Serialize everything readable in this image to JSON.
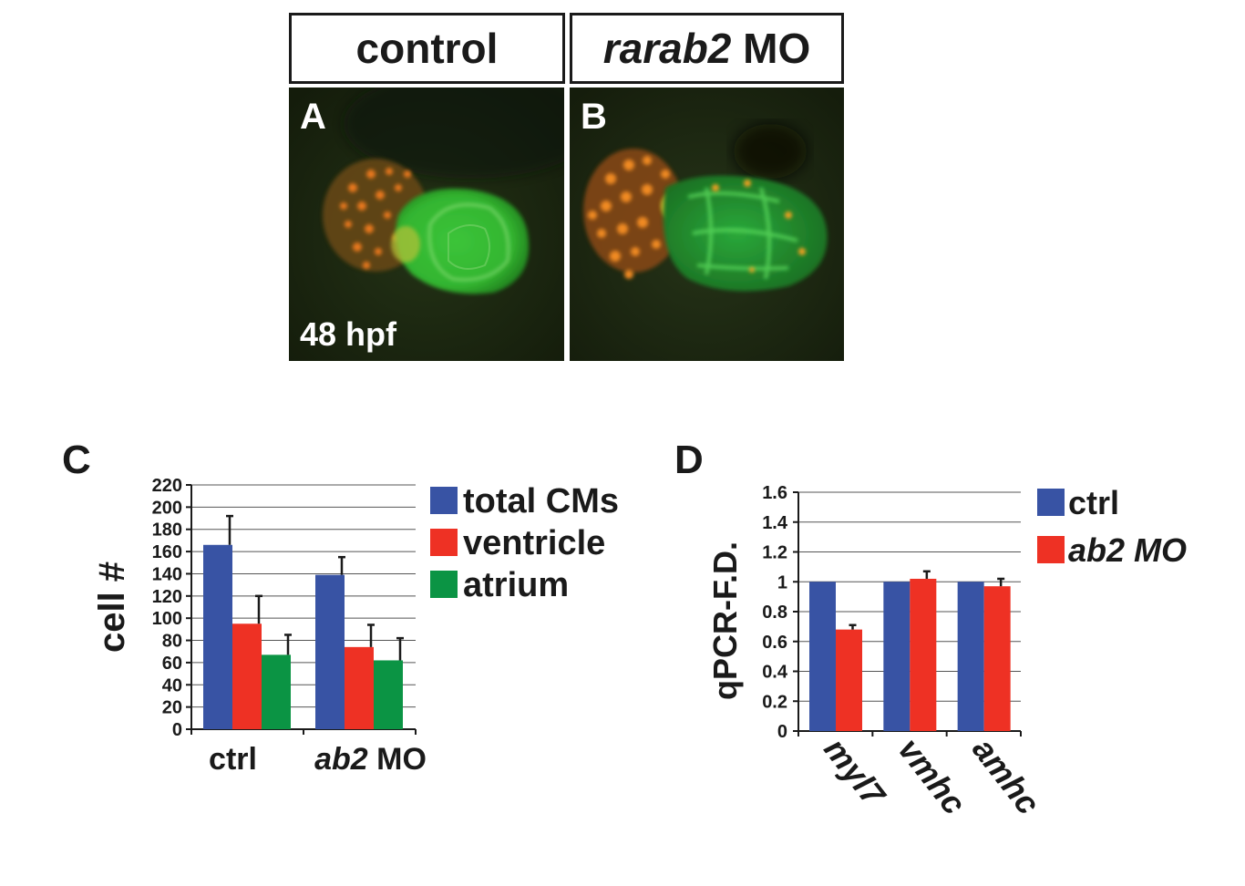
{
  "header": {
    "control_label": "control",
    "mo_label_italic": "rarab2",
    "mo_label_rest": " MO"
  },
  "panels": {
    "a_letter": "A",
    "b_letter": "B",
    "stage": "48 hpf",
    "c_letter": "C",
    "d_letter": "D"
  },
  "colors": {
    "blue": "#3853a4",
    "red": "#ee3124",
    "green": "#0b9444",
    "gfp_green": "#38c040",
    "rfp_orange": "#e85a1a"
  },
  "chart_data": [
    {
      "type": "bar",
      "panel": "C",
      "categories": [
        "ctrl",
        "ab2 MO"
      ],
      "category_italic_prefix": [
        "",
        "ab2"
      ],
      "category_rest": [
        "ctrl",
        " MO"
      ],
      "ylabel": "cell #",
      "ylim": [
        0,
        220
      ],
      "yticks": [
        0,
        20,
        40,
        60,
        80,
        100,
        120,
        140,
        160,
        180,
        200,
        220
      ],
      "grid": true,
      "legend_position": "right",
      "series": [
        {
          "name": "total CMs",
          "color": "#3853a4",
          "values": [
            166,
            139
          ],
          "errors": [
            26,
            16
          ]
        },
        {
          "name": "ventricle",
          "color": "#ee3124",
          "values": [
            95,
            74
          ],
          "errors": [
            25,
            20
          ]
        },
        {
          "name": "atrium",
          "color": "#0b9444",
          "values": [
            67,
            62
          ],
          "errors": [
            18,
            20
          ]
        }
      ]
    },
    {
      "type": "bar",
      "panel": "D",
      "categories": [
        "myl7",
        "vmhc",
        "amhc"
      ],
      "ylabel": "qPCR-F.D.",
      "ylim": [
        0,
        1.6
      ],
      "yticks": [
        0,
        0.2,
        0.4,
        0.6,
        0.8,
        1,
        1.2,
        1.4,
        1.6
      ],
      "grid": true,
      "legend_position": "right",
      "series": [
        {
          "name": "ctrl",
          "color": "#3853a4",
          "values": [
            1,
            1,
            1
          ],
          "errors": [
            0,
            0,
            0
          ]
        },
        {
          "name": "ab2 MO",
          "color": "#ee3124",
          "values": [
            0.68,
            1.02,
            0.97
          ],
          "errors": [
            0.03,
            0.05,
            0.05
          ]
        }
      ]
    }
  ]
}
